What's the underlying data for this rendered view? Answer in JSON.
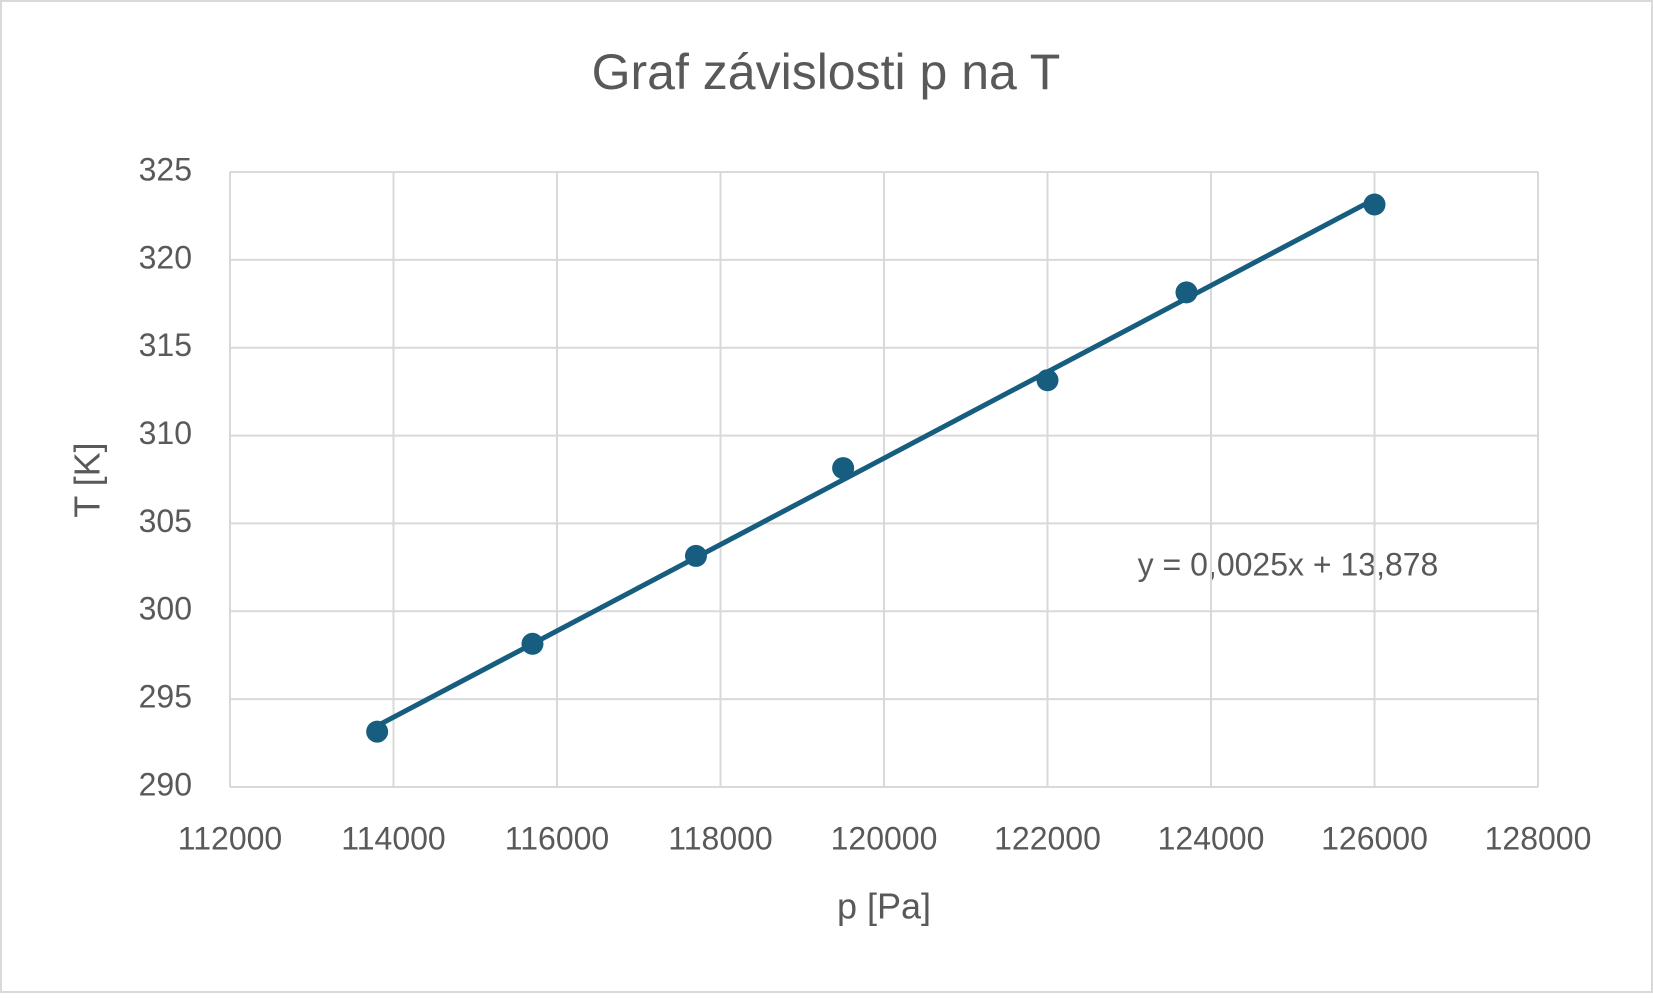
{
  "chart_data": {
    "type": "scatter",
    "title": "Graf závislosti p na T",
    "x_label": "p [Pa]",
    "y_label": "T [K]",
    "series": [
      {
        "name": "T",
        "color": "#175d7f",
        "x": [
          113800,
          115700,
          117700,
          119500,
          122000,
          123700,
          126000
        ],
        "values": [
          293.15,
          298.15,
          303.15,
          308.15,
          313.15,
          318.15,
          323.15
        ]
      }
    ],
    "trendline": true,
    "annotation": "y = 0,0025x + 13,878",
    "xlim": [
      112000,
      128000
    ],
    "xticks": [
      112000,
      114000,
      116000,
      118000,
      120000,
      122000,
      124000,
      126000,
      128000
    ],
    "ylim": [
      290,
      325
    ],
    "yticks": [
      290,
      295,
      300,
      305,
      310,
      315,
      320,
      325
    ],
    "grid": true
  }
}
